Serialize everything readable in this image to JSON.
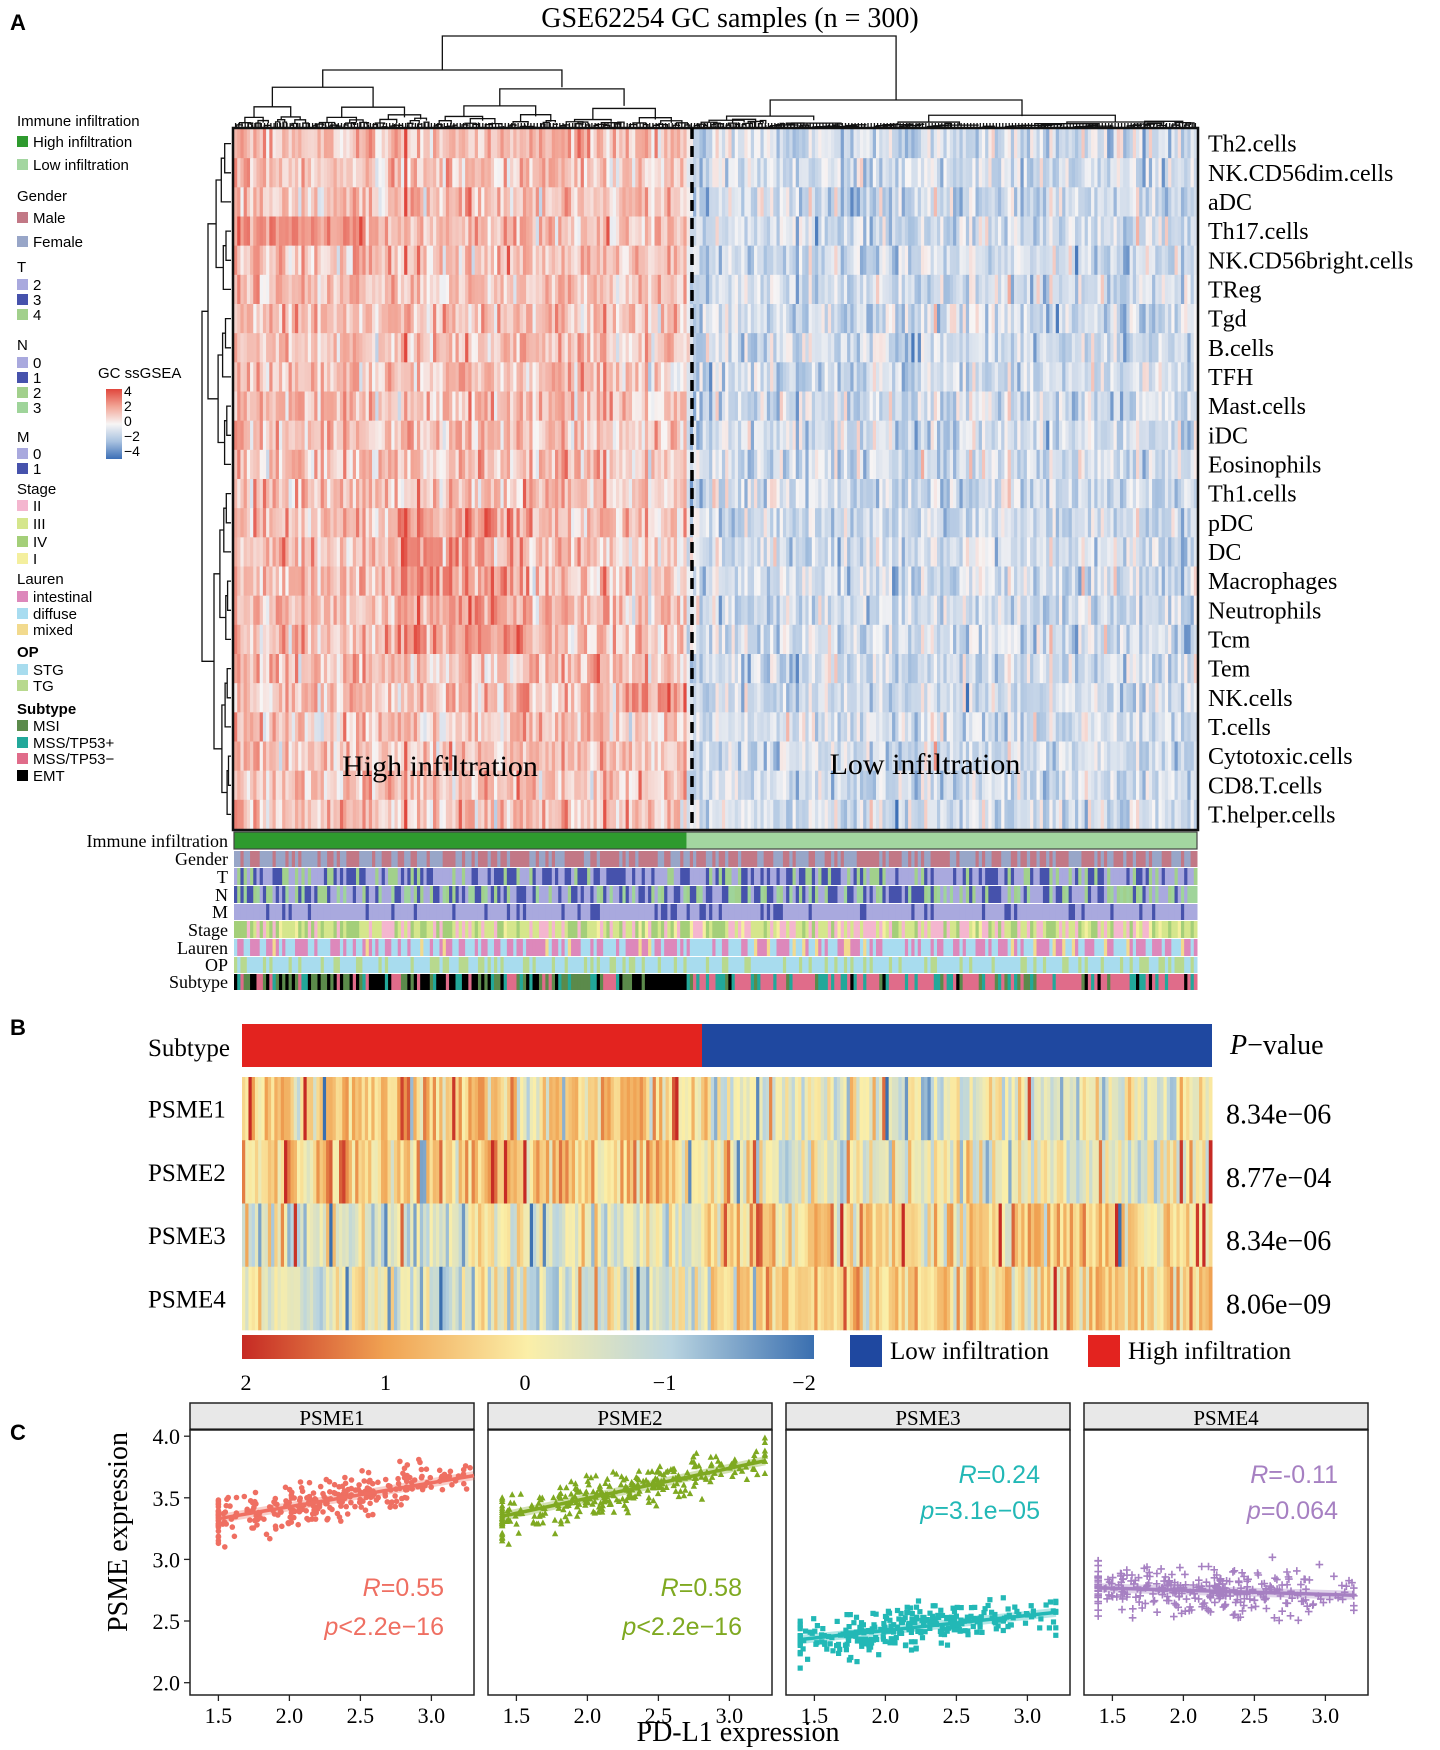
{
  "panel_labels": {
    "a": "A",
    "b": "B",
    "c": "C"
  },
  "colors": {
    "high_infiltration": "#2e9a2e",
    "low_infiltration": "#a3d6a0",
    "male": "#c27886",
    "female": "#98a6c8",
    "t2": "#a9a9de",
    "t3": "#4652ac",
    "t4": "#a2d08c",
    "n0": "#a9a9de",
    "n1": "#4652ac",
    "n2": "#a2d08c",
    "n3": "#9fd49a",
    "m0": "#a9a9de",
    "m1": "#4652ac",
    "stageII": "#f4b6cf",
    "stageIII": "#d5e68c",
    "stageIV": "#a4cf79",
    "stageI": "#f4ef9e",
    "intestinal": "#dd88bb",
    "diffuse": "#a8dcf0",
    "mixed": "#f2da8e",
    "stg": "#a8dcee",
    "tg": "#b8d98e",
    "msi": "#5b8a4b",
    "mss_tp53_plus": "#22a89a",
    "mss_tp53_minus": "#e06c8a",
    "emt": "#000000",
    "subtype_high": "#e3231f",
    "subtype_low": "#1f48a0",
    "psme1": "#ef6f62",
    "psme2": "#7fa921",
    "psme3": "#22b8b6",
    "psme4": "#a680c2"
  },
  "legend": {
    "immune_title": "Immune infiltration",
    "high": "High infiltration",
    "low": "Low infiltration",
    "gender_title": "Gender",
    "male": "Male",
    "female": "Female",
    "t_title": "T",
    "t_vals": [
      "2",
      "3",
      "4"
    ],
    "n_title": "N",
    "n_vals": [
      "0",
      "1",
      "2",
      "3"
    ],
    "m_title": "M",
    "m_vals": [
      "0",
      "1"
    ],
    "stage_title": "Stage",
    "stage_vals": [
      "II",
      "III",
      "IV",
      "I"
    ],
    "lauren_title": "Lauren",
    "lauren_vals": [
      "intestinal",
      "diffuse",
      "mixed"
    ],
    "op_title": "OP",
    "op_vals": [
      "STG",
      "TG"
    ],
    "subtype_title": "Subtype",
    "subtype_vals": [
      "MSI",
      "MSS/TP53+",
      "MSS/TP53−",
      "EMT"
    ],
    "ssgsea_title": "GC ssGSEA",
    "ssgsea_ticks": [
      "4",
      "2",
      "0",
      "−2",
      "−4"
    ]
  },
  "chart_data": [
    {
      "type": "heatmap",
      "title": "GSE62254 GC samples (n = 300)",
      "rows": [
        "Th2.cells",
        "NK.CD56dim.cells",
        "aDC",
        "Th17.cells",
        "NK.CD56bright.cells",
        "TReg",
        "Tgd",
        "B.cells",
        "TFH",
        "Mast.cells",
        "iDC",
        "Eosinophils",
        "Th1.cells",
        "pDC",
        "DC",
        "Macrophages",
        "Neutrophils",
        "Tcm",
        "Tem",
        "NK.cells",
        "T.cells",
        "Cytotoxic.cells",
        "CD8.T.cells",
        "T.helper.cells"
      ],
      "n_samples": 300,
      "color_scale": [
        -4,
        4
      ],
      "clusters": [
        {
          "label": "High infiltration",
          "n_samples": 141
        },
        {
          "label": "Low infiltration",
          "n_samples": 159
        }
      ],
      "annotation_tracks": [
        "Immune infiltration",
        "Gender",
        "T",
        "N",
        "M",
        "Stage",
        "Lauren",
        "OP",
        "Subtype"
      ]
    },
    {
      "type": "heatmap",
      "rows": [
        "PSME1",
        "PSME2",
        "PSME3",
        "PSME4"
      ],
      "top_track_label": "Subtype",
      "pvalue_header_p": "P",
      "pvalue_header_rest": "−value",
      "pvalues": [
        "8.34e−06",
        "8.77e−04",
        "8.34e−06",
        "8.06e−09"
      ],
      "color_scale": [
        2,
        -2
      ],
      "color_ticks": [
        "2",
        "1",
        "0",
        "−1",
        "−2"
      ],
      "groups": [
        {
          "label": "High infiltration",
          "fraction": 0.475
        },
        {
          "label": "Low infiltration",
          "fraction": 0.525
        }
      ],
      "legend": {
        "low": "Low infiltration",
        "high": "High infiltration"
      }
    },
    {
      "type": "scatter",
      "xlabel": "PD-L1 expression",
      "ylabel": "PSME expression",
      "xlim": [
        1.3,
        3.3
      ],
      "ylim": [
        1.9,
        4.05
      ],
      "xticks": [
        "1.5",
        "2.0",
        "2.5",
        "3.0"
      ],
      "yticks": [
        "2.0",
        "2.5",
        "3.0",
        "3.5",
        "4.0"
      ],
      "facets": [
        {
          "name": "PSME1",
          "marker": "circle",
          "x_range": [
            1.5,
            3.3
          ],
          "fit": [
            [
              1.5,
              3.33
            ],
            [
              3.3,
              3.68
            ]
          ],
          "R": "0.55",
          "p": "<2.2e−16",
          "label_pos": "bottom"
        },
        {
          "name": "PSME2",
          "marker": "triangle",
          "x_range": [
            1.4,
            3.25
          ],
          "fit": [
            [
              1.4,
              3.35
            ],
            [
              3.25,
              3.8
            ]
          ],
          "R": "0.58",
          "p": "<2.2e−16",
          "label_pos": "bottom"
        },
        {
          "name": "PSME3",
          "marker": "square",
          "x_range": [
            1.4,
            3.2
          ],
          "fit": [
            [
              1.4,
              2.35
            ],
            [
              3.2,
              2.57
            ]
          ],
          "R": "0.24",
          "p": "=3.1e−05",
          "label_pos": "top"
        },
        {
          "name": "PSME4",
          "marker": "plus",
          "x_range": [
            1.4,
            3.2
          ],
          "fit": [
            [
              1.4,
              2.77
            ],
            [
              3.2,
              2.71
            ]
          ],
          "R": "=-0.11",
          "p": "=0.064",
          "label_pos": "top"
        }
      ]
    }
  ]
}
